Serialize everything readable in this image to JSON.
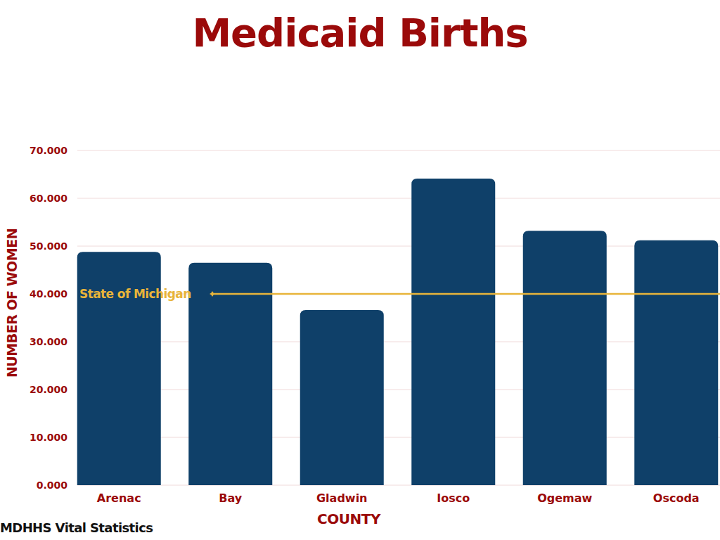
{
  "chart_data": {
    "type": "bar",
    "title": "Medicaid Births",
    "categories": [
      "Arenac",
      "Bay",
      "Gladwin",
      "Iosco",
      "Ogemaw",
      "Oscoda"
    ],
    "values": [
      48.8,
      46.5,
      36.6,
      64.1,
      53.2,
      51.2
    ],
    "color": "#0f4069",
    "x_label": "COUNTY",
    "y_label": "NUMBER OF WOMEN",
    "source": "MDHHS Vital Statistics",
    "reference_line": {
      "label": "State of Michigan",
      "value": 40,
      "color": "#e8b43a"
    },
    "ylim": [
      0,
      70
    ],
    "yticks": [
      {
        "value": 0,
        "label": "0.000"
      },
      {
        "value": 10,
        "label": "10.000"
      },
      {
        "value": 20,
        "label": "20.000"
      },
      {
        "value": 30,
        "label": "30.000"
      },
      {
        "value": 40,
        "label": "40.000"
      },
      {
        "value": 50,
        "label": "50.000"
      },
      {
        "value": 60,
        "label": "60.000"
      },
      {
        "value": 70,
        "label": "70.000"
      }
    ],
    "grid": true
  }
}
